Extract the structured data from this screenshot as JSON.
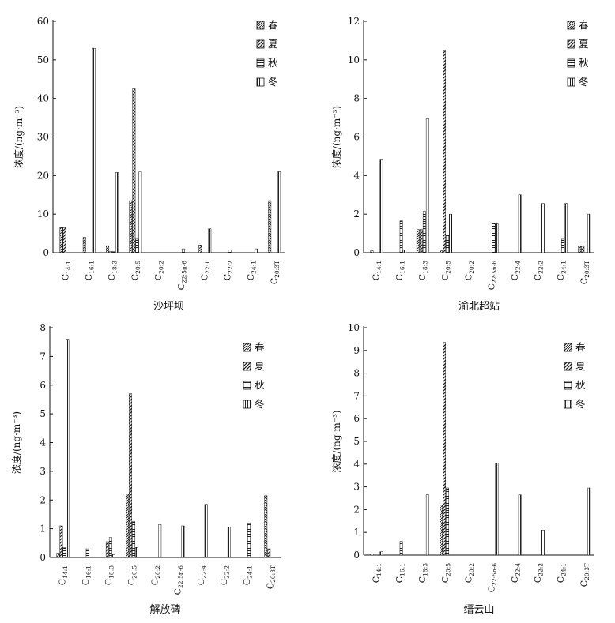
{
  "chart_data": [
    {
      "type": "bar",
      "title": "沙坪坝",
      "ylabel": "浓度/(ng·m⁻³)",
      "ylim": [
        0,
        60
      ],
      "yticks": [
        0,
        10,
        20,
        30,
        40,
        50,
        60
      ],
      "categories": [
        "C14:1",
        "C16:1",
        "C18:3",
        "C20:5",
        "C20:2",
        "C22:5n-6",
        "C22:1",
        "C22:2",
        "C24:1",
        "C20:3T"
      ],
      "series": [
        {
          "name": "春",
          "values": [
            6.5,
            4.0,
            1.8,
            13.5,
            0,
            0,
            2.0,
            0,
            0,
            13.5
          ]
        },
        {
          "name": "夏",
          "values": [
            6.5,
            0,
            0.3,
            42.5,
            0,
            0,
            0,
            0,
            0,
            0
          ]
        },
        {
          "name": "秋",
          "values": [
            0,
            0,
            0.3,
            3.5,
            0,
            1.0,
            0,
            0.7,
            0,
            0
          ]
        },
        {
          "name": "冬",
          "values": [
            0,
            53.0,
            20.8,
            21.0,
            0,
            0,
            6.2,
            0,
            1.0,
            21.0
          ]
        }
      ],
      "legend": "top-right"
    },
    {
      "type": "bar",
      "title": "渝北超站",
      "ylabel": "浓度/(ng·m⁻³)",
      "ylim": [
        0,
        12
      ],
      "yticks": [
        0,
        2,
        4,
        6,
        8,
        10,
        12
      ],
      "categories": [
        "C14:1",
        "C16:1",
        "C18:3",
        "C20:5",
        "C20:2",
        "C22:5n-6",
        "C22:4",
        "C22:2",
        "C24:1",
        "C20:3T"
      ],
      "series": [
        {
          "name": "春",
          "values": [
            0.1,
            0,
            1.2,
            0.1,
            0,
            0,
            0,
            0,
            0,
            0.35
          ]
        },
        {
          "name": "夏",
          "values": [
            0,
            0,
            1.2,
            10.5,
            0,
            0,
            0,
            0,
            0,
            0.35
          ]
        },
        {
          "name": "秋",
          "values": [
            0,
            1.65,
            2.15,
            0.9,
            0,
            1.5,
            0,
            0,
            0.7,
            0
          ]
        },
        {
          "name": "冬",
          "values": [
            4.85,
            0.15,
            6.95,
            2.0,
            0,
            1.5,
            3.0,
            2.55,
            2.55,
            2.0
          ]
        }
      ],
      "legend": "top-right"
    },
    {
      "type": "bar",
      "title": "解放碑",
      "ylabel": "浓度/(ng·m⁻³)",
      "ylim": [
        0,
        8
      ],
      "yticks": [
        0,
        1,
        2,
        3,
        4,
        5,
        6,
        7,
        8
      ],
      "categories": [
        "C14:1",
        "C16:1",
        "C18:3",
        "C20:5",
        "C20:2",
        "C22:5n-6",
        "C22:4",
        "C22:2",
        "C24:1",
        "C20:3T"
      ],
      "series": [
        {
          "name": "春",
          "values": [
            0.15,
            0,
            0,
            2.2,
            0,
            0,
            0,
            0,
            0,
            2.15
          ]
        },
        {
          "name": "夏",
          "values": [
            1.1,
            0,
            0.55,
            5.7,
            0,
            0,
            0,
            0,
            0,
            0.3
          ]
        },
        {
          "name": "秋",
          "values": [
            0.35,
            0.3,
            0.7,
            1.25,
            0,
            0,
            0,
            0,
            1.2,
            0
          ]
        },
        {
          "name": "冬",
          "values": [
            7.6,
            0,
            0.1,
            0.35,
            1.15,
            1.1,
            1.85,
            1.05,
            0,
            0
          ]
        }
      ],
      "legend": "top-right"
    },
    {
      "type": "bar",
      "title": "缙云山",
      "ylabel": "浓度/(ng·m⁻³)",
      "ylim": [
        0,
        10
      ],
      "yticks": [
        0,
        1,
        2,
        3,
        4,
        5,
        6,
        7,
        8,
        9,
        10
      ],
      "categories": [
        "C14:1",
        "C16:1",
        "C18:3",
        "C20:5",
        "C20:2",
        "C22:5n-6",
        "C22:4",
        "C22:2",
        "C24:1",
        "C20:3T"
      ],
      "series": [
        {
          "name": "春",
          "values": [
            0.05,
            0,
            0,
            2.2,
            0,
            0,
            0,
            0,
            0,
            0
          ]
        },
        {
          "name": "夏",
          "values": [
            0,
            0,
            0,
            9.35,
            0,
            0,
            0,
            0,
            0,
            0
          ]
        },
        {
          "name": "秋",
          "values": [
            0,
            0.6,
            0,
            2.95,
            0,
            0,
            0,
            0,
            0,
            0
          ]
        },
        {
          "name": "冬",
          "values": [
            0.15,
            0,
            2.65,
            0,
            0,
            4.05,
            2.65,
            1.1,
            0,
            2.95
          ]
        }
      ],
      "legend": "top-right"
    }
  ]
}
